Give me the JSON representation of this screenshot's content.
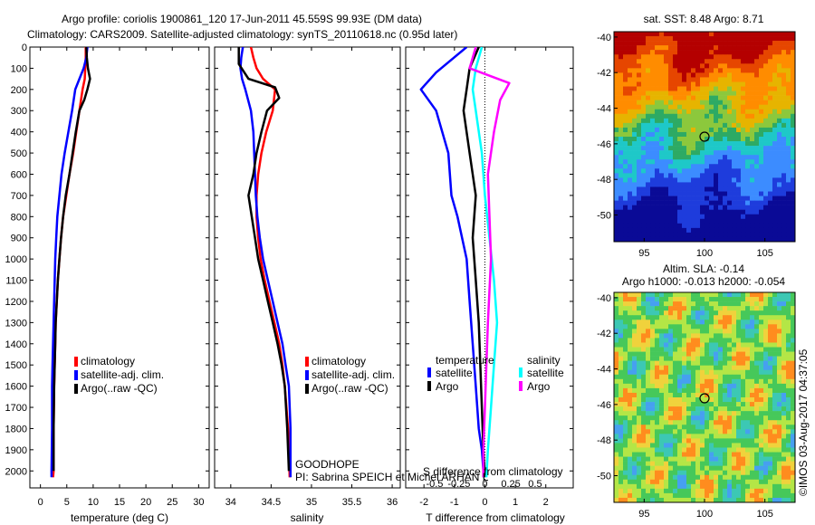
{
  "header": {
    "title_line1": "Argo profile: coriolis 1900861_120 17-Jun-2011 45.559S 99.93E (DM data)",
    "title_line2": "Climatology: CARS2009. Satellite-adjusted climatology: synTS_20110618.nc (0.95d later)"
  },
  "colors": {
    "climatology": "#ff0000",
    "satellite": "#0000ff",
    "argo": "#000000",
    "sat_salinity": "#00ffff",
    "argo_salinity": "#ff00ff"
  },
  "chart_data": [
    {
      "type": "line",
      "name": "temperature",
      "xlabel": "temperature (deg C)",
      "ylabel": "",
      "xlim": [
        -2,
        32
      ],
      "ylim": [
        2080,
        0
      ],
      "xticks": [
        0,
        5,
        10,
        15,
        20,
        25,
        30
      ],
      "yticks": [
        0,
        100,
        200,
        300,
        400,
        500,
        600,
        700,
        800,
        900,
        1000,
        1100,
        1200,
        1300,
        1400,
        1500,
        1600,
        1700,
        1800,
        1900,
        2000
      ],
      "legend": {
        "placement": "lower-center",
        "labels": [
          "climatology",
          "satellite-adj. clim.",
          "Argo(..raw -QC)"
        ]
      },
      "series": [
        {
          "name": "climatology",
          "x": [
            8.6,
            8.6,
            8.5,
            8.4,
            8.0,
            7.4,
            6.8,
            6.2,
            5.5,
            4.9,
            4.3,
            3.9,
            3.6,
            3.3,
            3.1,
            2.9,
            2.8,
            2.7,
            2.6,
            2.5,
            2.5,
            2.4
          ],
          "depth": [
            0,
            50,
            100,
            150,
            200,
            300,
            400,
            500,
            600,
            700,
            800,
            900,
            1000,
            1100,
            1200,
            1300,
            1400,
            1500,
            1600,
            1800,
            2000,
            2030
          ]
        },
        {
          "name": "satellite-adj. clim.",
          "x": [
            8.9,
            8.7,
            8.2,
            7.4,
            6.6,
            6.0,
            5.3,
            4.6,
            4.0,
            3.6,
            3.2,
            3.0,
            2.8,
            2.7,
            2.6,
            2.5,
            2.4,
            2.3,
            2.2,
            2.2,
            2.1,
            2.1
          ],
          "depth": [
            0,
            50,
            100,
            150,
            200,
            300,
            400,
            500,
            600,
            700,
            800,
            900,
            1000,
            1100,
            1200,
            1300,
            1400,
            1500,
            1600,
            1800,
            2000,
            2030
          ]
        },
        {
          "name": "Argo(..raw -QC)",
          "x": [
            8.7,
            8.8,
            9.0,
            9.4,
            8.9,
            8.3,
            7.4,
            6.7,
            6.1,
            5.5,
            4.8,
            4.3,
            3.9,
            3.6,
            3.3,
            3.1,
            2.9,
            2.8,
            2.7,
            2.6,
            2.5,
            2.5
          ],
          "depth": [
            0,
            50,
            100,
            150,
            200,
            250,
            300,
            400,
            500,
            600,
            700,
            800,
            900,
            1000,
            1100,
            1200,
            1300,
            1400,
            1500,
            1600,
            1800,
            2000
          ]
        }
      ]
    },
    {
      "type": "line",
      "name": "salinity",
      "xlabel": "salinity",
      "ylabel": "",
      "xlim": [
        33.8,
        36.1
      ],
      "ylim": [
        2080,
        0
      ],
      "xticks": [
        34,
        34.5,
        35,
        35.5,
        36
      ],
      "legend": {
        "placement": "lower-center",
        "labels": [
          "climatology",
          "satellite-adj. clim.",
          "Argo(..raw -QC)"
        ]
      },
      "annotation": [
        "GOODHOPE",
        "PI: Sabrina SPEICH et Michel ARHAN L"
      ],
      "series": [
        {
          "name": "climatology",
          "x": [
            34.25,
            34.28,
            34.32,
            34.4,
            34.55,
            34.52,
            34.44,
            34.38,
            34.34,
            34.32,
            34.32,
            34.34,
            34.37,
            34.42,
            34.48,
            34.54,
            34.6,
            34.64,
            34.67,
            34.71,
            34.73
          ],
          "depth": [
            0,
            50,
            100,
            150,
            200,
            300,
            400,
            500,
            600,
            700,
            800,
            900,
            1000,
            1100,
            1200,
            1300,
            1400,
            1500,
            1600,
            1800,
            2030
          ]
        },
        {
          "name": "satellite-adj. clim.",
          "x": [
            34.15,
            34.13,
            34.12,
            34.14,
            34.18,
            34.25,
            34.28,
            34.29,
            34.3,
            34.31,
            34.33,
            34.36,
            34.4,
            34.46,
            34.52,
            34.58,
            34.64,
            34.68,
            34.72,
            34.74,
            34.74
          ],
          "depth": [
            0,
            50,
            100,
            150,
            200,
            300,
            400,
            500,
            600,
            700,
            800,
            900,
            1000,
            1100,
            1200,
            1300,
            1400,
            1500,
            1600,
            1800,
            2030
          ]
        },
        {
          "name": "Argo(..raw -QC)",
          "x": [
            34.1,
            34.1,
            34.22,
            34.55,
            34.6,
            34.45,
            34.38,
            34.32,
            34.28,
            34.22,
            34.26,
            34.3,
            34.34,
            34.4,
            34.46,
            34.52,
            34.58,
            34.63,
            34.67,
            34.7,
            34.72
          ],
          "depth": [
            0,
            80,
            150,
            190,
            240,
            300,
            400,
            500,
            600,
            700,
            800,
            900,
            1000,
            1100,
            1200,
            1300,
            1400,
            1500,
            1600,
            1800,
            2000
          ]
        }
      ]
    },
    {
      "type": "line",
      "name": "difference",
      "xlabel": "T difference from climatology",
      "xlabel_top": "S difference from climatology",
      "ylabel": "",
      "xlim": [
        -2.6,
        2.9
      ],
      "ylim": [
        2080,
        0
      ],
      "xticks_T": [
        -2,
        -1,
        0,
        1,
        2
      ],
      "xticks_S": [
        "-0.5",
        "-0.25",
        "0",
        "0.25",
        "0.5"
      ],
      "legend": {
        "placement": "lower-center",
        "headers": [
          "temperature",
          "salinity"
        ],
        "labels": [
          "satellite",
          "Argo",
          "satellite",
          "Argo"
        ]
      },
      "series": [
        {
          "name": "temperature satellite",
          "x": [
            -0.6,
            -1.6,
            -2.1,
            -1.6,
            -1.2,
            -1.1,
            -0.9,
            -0.6,
            -0.5,
            -0.4,
            -0.3,
            -0.2,
            -0.1,
            -0.05,
            -0.05
          ],
          "depth": [
            0,
            120,
            200,
            300,
            500,
            700,
            800,
            1000,
            1200,
            1400,
            1600,
            1800,
            1900,
            2000,
            2030
          ]
        },
        {
          "name": "temperature Argo",
          "x": [
            -0.2,
            -0.5,
            -0.6,
            -0.7,
            -0.5,
            -0.4,
            -0.3,
            -0.4,
            -0.3,
            -0.2,
            -0.15,
            -0.1,
            -0.05,
            0.0
          ],
          "depth": [
            0,
            100,
            200,
            300,
            500,
            600,
            700,
            900,
            1100,
            1300,
            1500,
            1700,
            1900,
            2030
          ]
        },
        {
          "name": "salinity satellite",
          "x": [
            -0.1,
            -0.3,
            -0.4,
            -0.3,
            -0.1,
            0.0,
            0.15,
            0.3,
            0.4,
            0.3,
            0.2,
            0.1,
            0.05
          ],
          "depth": [
            0,
            100,
            200,
            300,
            500,
            700,
            900,
            1100,
            1300,
            1500,
            1700,
            1900,
            2030
          ]
        },
        {
          "name": "salinity Argo",
          "x": [
            -0.3,
            -0.5,
            0.8,
            0.5,
            0.3,
            0.1,
            0.15,
            0.2,
            0.1,
            0.05,
            0.0,
            -0.05,
            -0.05
          ],
          "depth": [
            0,
            100,
            170,
            250,
            400,
            600,
            800,
            1000,
            1300,
            1500,
            1700,
            1900,
            2030
          ]
        }
      ]
    },
    {
      "type": "heatmap",
      "name": "sst_map",
      "title": "sat. SST: 8.48 Argo: 8.71",
      "xlim": [
        92.5,
        107.5
      ],
      "ylim": [
        -51.5,
        -39.7
      ],
      "xticks": [
        95,
        100,
        105
      ],
      "yticks": [
        -40,
        -42,
        -44,
        -46,
        -48,
        -50
      ],
      "marker": {
        "lon": 99.93,
        "lat": -45.559
      }
    },
    {
      "type": "heatmap",
      "name": "sla_map",
      "title_line1": "Altim. SLA: -0.14",
      "title_line2": "Argo h1000: -0.013 h2000: -0.054",
      "xlim": [
        92.5,
        107.5
      ],
      "ylim": [
        -51.5,
        -39.7
      ],
      "xticks": [
        95,
        100,
        105
      ],
      "yticks": [
        -40,
        -42,
        -44,
        -46,
        -48,
        -50
      ],
      "marker": {
        "lon": 99.93,
        "lat": -45.559
      }
    }
  ],
  "watermark": "©IMOS 03-Aug-2017 04:37:05"
}
